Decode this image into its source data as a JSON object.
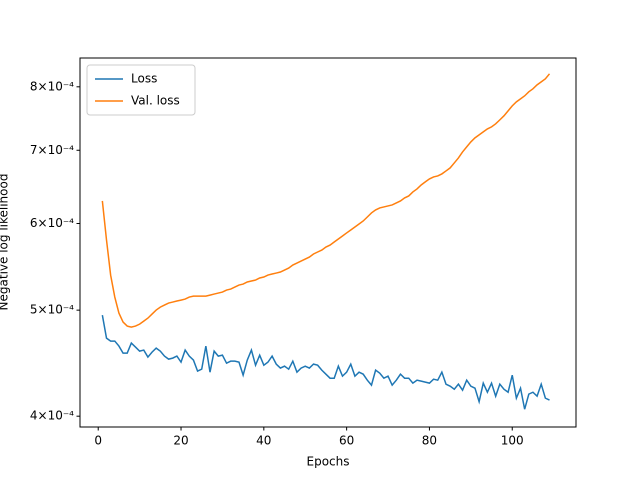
{
  "chart_data": {
    "type": "line",
    "xlabel": "Epochs",
    "ylabel": "Negative log likelihood",
    "x": [
      1,
      2,
      3,
      4,
      5,
      6,
      7,
      8,
      9,
      10,
      11,
      12,
      13,
      14,
      15,
      16,
      17,
      18,
      19,
      20,
      21,
      22,
      23,
      24,
      25,
      26,
      27,
      28,
      29,
      30,
      31,
      32,
      33,
      34,
      35,
      36,
      37,
      38,
      39,
      40,
      41,
      42,
      43,
      44,
      45,
      46,
      47,
      48,
      49,
      50,
      51,
      52,
      53,
      54,
      55,
      56,
      57,
      58,
      59,
      60,
      61,
      62,
      63,
      64,
      65,
      66,
      67,
      68,
      69,
      70,
      71,
      72,
      73,
      74,
      75,
      76,
      77,
      78,
      79,
      80,
      81,
      82,
      83,
      84,
      85,
      86,
      87,
      88,
      89,
      90,
      91,
      92,
      93,
      94,
      95,
      96,
      97,
      98,
      99,
      100,
      101,
      102,
      103,
      104,
      105,
      106,
      107,
      108,
      109
    ],
    "series": [
      {
        "name": "Loss",
        "color": "#1f77b4",
        "values": [
          0.0004948,
          0.0004714,
          0.0004685,
          0.0004685,
          0.0004636,
          0.0004568,
          0.0004568,
          0.0004665,
          0.0004626,
          0.0004587,
          0.0004597,
          0.000453,
          0.0004577,
          0.0004616,
          0.0004587,
          0.0004539,
          0.000451,
          0.000452,
          0.0004539,
          0.0004482,
          0.0004597,
          0.0004539,
          0.0004501,
          0.0004398,
          0.0004416,
          0.0004636,
          0.0004388,
          0.0004587,
          0.0004539,
          0.0004548,
          0.0004472,
          0.0004491,
          0.0004491,
          0.0004482,
          0.0004361,
          0.0004501,
          0.0004597,
          0.0004453,
          0.0004548,
          0.0004453,
          0.0004482,
          0.0004539,
          0.0004463,
          0.0004426,
          0.0004444,
          0.0004416,
          0.0004491,
          0.0004388,
          0.0004426,
          0.0004444,
          0.0004426,
          0.0004463,
          0.0004453,
          0.0004407,
          0.000437,
          0.0004333,
          0.0004333,
          0.0004444,
          0.0004352,
          0.0004388,
          0.0004463,
          0.0004352,
          0.0004388,
          0.000437,
          0.0004315,
          0.000427,
          0.0004407,
          0.0004379,
          0.0004333,
          0.0004352,
          0.000427,
          0.0004315,
          0.000437,
          0.0004333,
          0.0004333,
          0.0004288,
          0.0004315,
          0.0004306,
          0.0004297,
          0.0004288,
          0.0004324,
          0.0004315,
          0.0004388,
          0.0004279,
          0.0004261,
          0.0004234,
          0.0004279,
          0.0004225,
          0.0004315,
          0.0004261,
          0.0004243,
          0.0004124,
          0.0004288,
          0.0004207,
          0.0004288,
          0.0004172,
          0.0004279,
          0.0004234,
          0.0004207,
          0.0004361,
          0.0004155,
          0.0004243,
          0.0004059,
          0.000419,
          0.0004207,
          0.0004172,
          0.0004279,
          0.0004155,
          0.0004138
        ]
      },
      {
        "name": "Val. loss",
        "color": "#ff7f0e",
        "values": [
          0.0006292,
          0.0005796,
          0.0005383,
          0.000514,
          0.0004969,
          0.0004876,
          0.0004835,
          0.0004825,
          0.0004835,
          0.0004855,
          0.0004886,
          0.0004917,
          0.0004959,
          0.0005001,
          0.0005032,
          0.0005054,
          0.0005075,
          0.0005086,
          0.0005097,
          0.0005107,
          0.0005118,
          0.000514,
          0.000515,
          0.000515,
          0.000515,
          0.000515,
          0.0005161,
          0.0005172,
          0.0005183,
          0.0005194,
          0.0005216,
          0.0005227,
          0.0005249,
          0.0005271,
          0.0005282,
          0.0005305,
          0.0005316,
          0.0005327,
          0.000535,
          0.0005361,
          0.0005383,
          0.0005395,
          0.0005406,
          0.0005418,
          0.000544,
          0.0005463,
          0.0005498,
          0.0005521,
          0.0005544,
          0.0005568,
          0.0005591,
          0.0005627,
          0.0005651,
          0.0005674,
          0.000571,
          0.0005734,
          0.0005771,
          0.0005808,
          0.0005844,
          0.0005882,
          0.0005919,
          0.0005956,
          0.0005994,
          0.0006032,
          0.0006083,
          0.0006135,
          0.0006174,
          0.00062,
          0.0006213,
          0.0006226,
          0.0006239,
          0.0006265,
          0.0006292,
          0.0006332,
          0.0006358,
          0.0006412,
          0.0006453,
          0.0006507,
          0.0006549,
          0.000659,
          0.0006618,
          0.0006632,
          0.000666,
          0.0006702,
          0.0006745,
          0.0006816,
          0.0006888,
          0.0006976,
          0.000705,
          0.0007124,
          0.0007185,
          0.000723,
          0.0007276,
          0.0007322,
          0.0007353,
          0.00074,
          0.0007462,
          0.0007526,
          0.0007605,
          0.0007686,
          0.0007751,
          0.00078,
          0.0007849,
          0.0007916,
          0.0007966,
          0.0008033,
          0.0008084,
          0.0008135,
          0.0008222
        ]
      }
    ],
    "xlim": [
      -4.4,
      115.4
    ],
    "xticks": [
      0,
      20,
      40,
      60,
      80,
      100
    ],
    "ylim": [
      0.000391,
      0.00085
    ],
    "yscale": "log",
    "yticks": [
      {
        "value": 0.0004,
        "label": "4×10⁻⁴"
      },
      {
        "value": 0.0005,
        "label": "5×10⁻⁴"
      },
      {
        "value": 0.0006,
        "label": "6×10⁻⁴"
      },
      {
        "value": 0.0007,
        "label": "7×10⁻⁴"
      },
      {
        "value": 0.0008,
        "label": "8×10⁻⁴"
      }
    ],
    "grid": false,
    "legend": "upper-left"
  }
}
